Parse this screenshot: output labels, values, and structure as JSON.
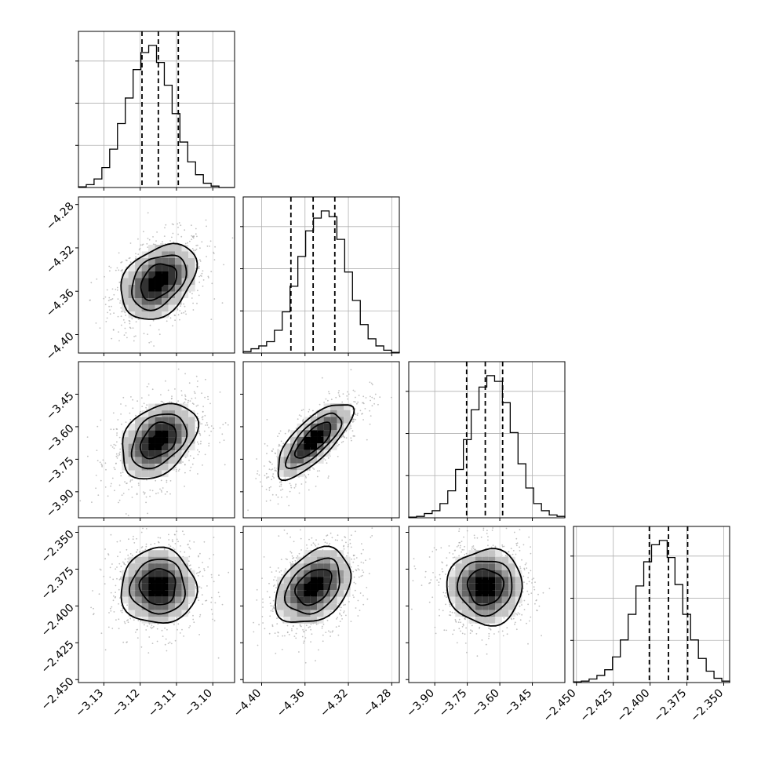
{
  "chart_data": {
    "type": "corner",
    "n_params": 4,
    "grid": true,
    "quantile_lines": "dashed",
    "params": [
      {
        "range": [
          -3.137,
          -3.094
        ],
        "ticks": [
          -3.13,
          -3.12,
          -3.11,
          -3.1
        ],
        "tick_labels": [
          "−3.13",
          "−3.12",
          "−3.11",
          "−3.10"
        ],
        "quantiles": [
          -3.1195,
          -3.115,
          -3.1095
        ],
        "hist": [
          0.005,
          0.02,
          0.06,
          0.14,
          0.27,
          0.45,
          0.63,
          0.83,
          0.95,
          1.0,
          0.88,
          0.72,
          0.52,
          0.32,
          0.18,
          0.09,
          0.03,
          0.01,
          0.0,
          0.0
        ]
      },
      {
        "range": [
          -4.417,
          -4.273
        ],
        "ticks": [
          -4.4,
          -4.36,
          -4.32,
          -4.28
        ],
        "tick_labels": [
          "−4.40",
          "−4.36",
          "−4.32",
          "−4.28"
        ],
        "quantiles": [
          -4.373,
          -4.3525,
          -4.3325
        ],
        "hist": [
          0.01,
          0.03,
          0.05,
          0.08,
          0.16,
          0.29,
          0.47,
          0.68,
          0.86,
          0.95,
          1.0,
          0.96,
          0.8,
          0.57,
          0.37,
          0.2,
          0.1,
          0.05,
          0.02,
          0.005
        ]
      },
      {
        "range": [
          -4.02,
          -3.3
        ],
        "ticks": [
          -3.9,
          -3.75,
          -3.6,
          -3.45
        ],
        "tick_labels": [
          "−3.90",
          "−3.75",
          "−3.60",
          "−3.45"
        ],
        "quantiles": [
          -3.753,
          -3.667,
          -3.587
        ],
        "hist": [
          0.005,
          0.01,
          0.03,
          0.05,
          0.1,
          0.19,
          0.34,
          0.55,
          0.76,
          0.92,
          1.0,
          0.96,
          0.81,
          0.6,
          0.38,
          0.21,
          0.1,
          0.05,
          0.02,
          0.01
        ]
      },
      {
        "range": [
          -2.452,
          -2.346
        ],
        "ticks": [
          -2.45,
          -2.425,
          -2.4,
          -2.375,
          -2.35
        ],
        "tick_labels": [
          "−2.450",
          "−2.425",
          "−2.400",
          "−2.375",
          "−2.350"
        ],
        "quantiles": [
          -2.4005,
          -2.3875,
          -2.3745
        ],
        "hist": [
          0.005,
          0.01,
          0.025,
          0.05,
          0.09,
          0.18,
          0.3,
          0.48,
          0.68,
          0.85,
          0.97,
          1.0,
          0.88,
          0.69,
          0.48,
          0.3,
          0.17,
          0.08,
          0.03,
          0.01
        ]
      }
    ],
    "pairs": [
      {
        "x_param": 0,
        "y_param": 1,
        "center": [
          -3.115,
          -4.351
        ],
        "orientation": "positive-correlation",
        "correlation": 0.35,
        "n_levels": 4
      },
      {
        "x_param": 0,
        "y_param": 2,
        "center": [
          -3.115,
          -3.663
        ],
        "orientation": "positive-correlation",
        "correlation": 0.35,
        "n_levels": 4
      },
      {
        "x_param": 1,
        "y_param": 2,
        "center": [
          -4.352,
          -3.662
        ],
        "orientation": "positive-correlation",
        "correlation": 0.75,
        "n_levels": 4
      },
      {
        "x_param": 0,
        "y_param": 3,
        "center": [
          -3.115,
          -2.387
        ],
        "orientation": "uncorrelated",
        "correlation": 0.0,
        "n_levels": 4
      },
      {
        "x_param": 1,
        "y_param": 3,
        "center": [
          -4.352,
          -2.387
        ],
        "orientation": "positive-correlation",
        "correlation": 0.35,
        "n_levels": 4
      },
      {
        "x_param": 2,
        "y_param": 3,
        "center": [
          -3.667,
          -2.387
        ],
        "orientation": "uncorrelated",
        "correlation": 0.0,
        "n_levels": 4
      }
    ],
    "colors": {
      "line": "#000000",
      "grid": "#b0b0b0",
      "scatter": "#a6a6a6",
      "density": [
        "#e5e5e5",
        "#c4c4c4",
        "#999999",
        "#666666",
        "#333333",
        "#000000"
      ]
    }
  }
}
